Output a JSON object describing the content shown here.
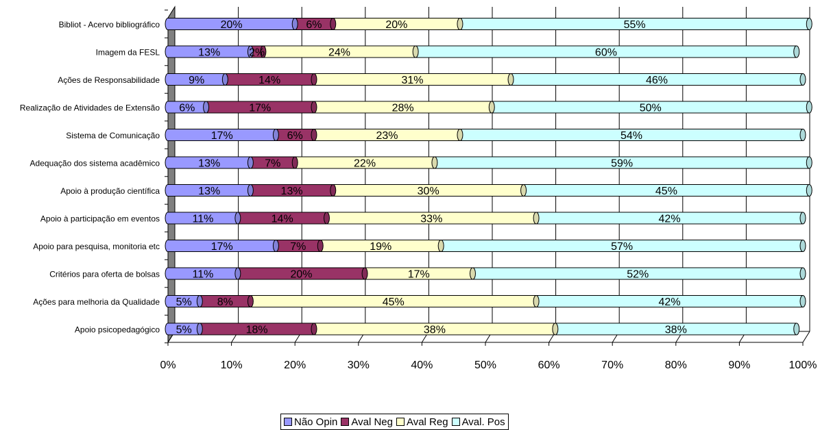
{
  "chart_data": {
    "type": "bar",
    "orientation": "horizontal",
    "stacked": "percent",
    "categories": [
      "Bibliot - Acervo bibliográfico",
      "Imagem da FESL",
      "Ações de Responsabilidade",
      "Realização de Atividades de Extensão",
      "Sistema de Comunicação",
      "Adequação dos sistema acadêmico",
      "Apoio à produção científica",
      "Apoio à participação em eventos",
      "Apoio para pesquisa, monitoria etc",
      "Critérios para oferta de bolsas",
      "Ações para melhoria da Qualidade",
      "Apoio psicopedagógico"
    ],
    "series": [
      {
        "name": "Não Opin",
        "color": "#9999ff",
        "values": [
          20,
          13,
          9,
          6,
          17,
          13,
          13,
          11,
          17,
          11,
          5,
          5
        ]
      },
      {
        "name": "Aval Neg",
        "color": "#993366",
        "values": [
          6,
          2,
          14,
          17,
          6,
          7,
          13,
          14,
          7,
          20,
          8,
          18
        ]
      },
      {
        "name": "Aval Reg",
        "color": "#ffffcc",
        "values": [
          20,
          24,
          31,
          28,
          23,
          22,
          30,
          33,
          19,
          17,
          45,
          38
        ]
      },
      {
        "name": "Aval. Pos",
        "color": "#ccffff",
        "values": [
          55,
          60,
          46,
          50,
          54,
          59,
          45,
          42,
          57,
          52,
          42,
          38
        ]
      }
    ],
    "data_labels": [
      [
        "20%",
        "6%",
        "20%",
        "55%"
      ],
      [
        "13%",
        "2%",
        "24%",
        "60%"
      ],
      [
        "9%",
        "14%",
        "31%",
        "46%"
      ],
      [
        "6%",
        "17%",
        "28%",
        "50%"
      ],
      [
        "17%",
        "6%",
        "23%",
        "54%"
      ],
      [
        "13%",
        "7%",
        "22%",
        "59%"
      ],
      [
        "13%",
        "13%",
        "30%",
        "45%"
      ],
      [
        "11%",
        "14%",
        "33%",
        "42%"
      ],
      [
        "17%",
        "7%",
        "19%",
        "57%"
      ],
      [
        "11%",
        "20%",
        "17%",
        "52%"
      ],
      [
        "5%",
        "8%",
        "45%",
        "42%"
      ],
      [
        "5%",
        "18%",
        "38%",
        "38%"
      ]
    ],
    "x_ticks": [
      "0%",
      "10%",
      "20%",
      "30%",
      "40%",
      "50%",
      "60%",
      "70%",
      "80%",
      "90%",
      "100%"
    ],
    "xlim": [
      0,
      100
    ],
    "grid": true,
    "legend_position": "bottom",
    "title": "",
    "xlabel": "",
    "ylabel": ""
  },
  "colors": {
    "wall": "#808080",
    "grid": "#000000",
    "background": "#ffffff"
  }
}
